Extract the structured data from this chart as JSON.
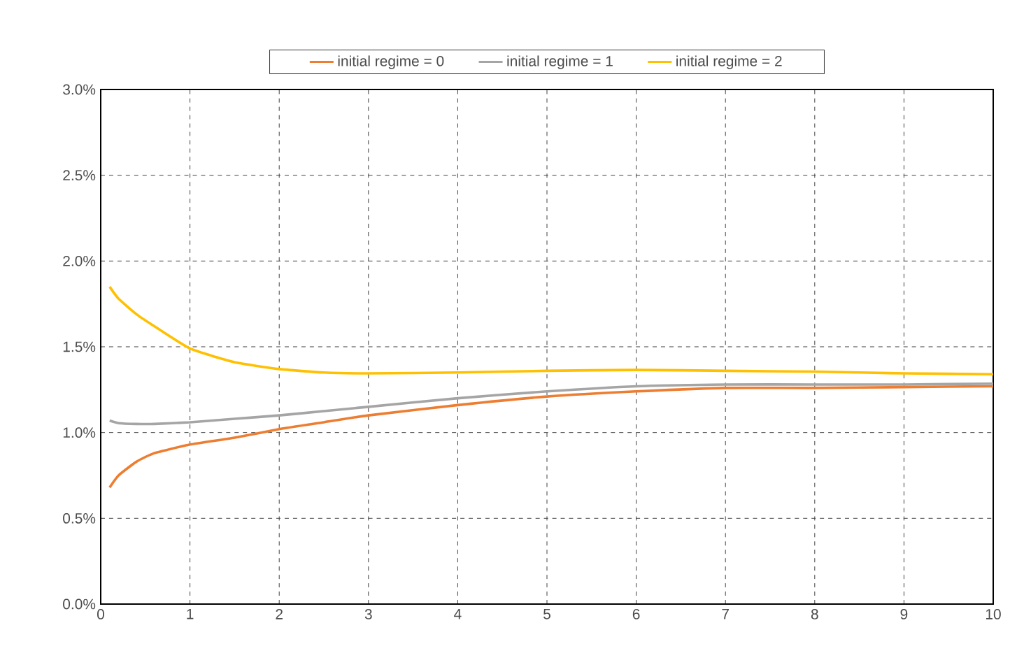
{
  "chart_data": {
    "type": "line",
    "x": [
      0.1,
      0.2,
      0.4,
      0.6,
      1,
      1.5,
      2,
      2.5,
      3,
      4,
      5,
      6,
      7,
      8,
      9,
      10
    ],
    "series": [
      {
        "name": "initial regime = 0",
        "color": "#ed7d31",
        "values": [
          0.68,
          0.75,
          0.83,
          0.88,
          0.93,
          0.97,
          1.02,
          1.06,
          1.1,
          1.16,
          1.21,
          1.24,
          1.26,
          1.26,
          1.265,
          1.27
        ]
      },
      {
        "name": "initial regime = 1",
        "color": "#a5a5a5",
        "values": [
          1.07,
          1.055,
          1.05,
          1.05,
          1.06,
          1.08,
          1.1,
          1.125,
          1.15,
          1.2,
          1.24,
          1.27,
          1.28,
          1.28,
          1.28,
          1.285
        ]
      },
      {
        "name": "initial regime = 2",
        "color": "#ffc000",
        "values": [
          1.85,
          1.78,
          1.69,
          1.62,
          1.49,
          1.41,
          1.37,
          1.35,
          1.345,
          1.35,
          1.36,
          1.365,
          1.36,
          1.355,
          1.345,
          1.34
        ]
      }
    ],
    "xlim": [
      0,
      10
    ],
    "xticks": [
      0,
      1,
      2,
      3,
      4,
      5,
      6,
      7,
      8,
      9,
      10
    ],
    "ylim": [
      0,
      3
    ],
    "yticks": [
      {
        "value": 0,
        "label": "0.0%"
      },
      {
        "value": 0.5,
        "label": "0.5%"
      },
      {
        "value": 1,
        "label": "1.0%"
      },
      {
        "value": 1.5,
        "label": "1.5%"
      },
      {
        "value": 2,
        "label": "2.0%"
      },
      {
        "value": 2.5,
        "label": "2.5%"
      },
      {
        "value": 3,
        "label": "3.0%"
      }
    ],
    "grid": true,
    "legend": "top",
    "marker": "none",
    "line_style": "solid"
  }
}
